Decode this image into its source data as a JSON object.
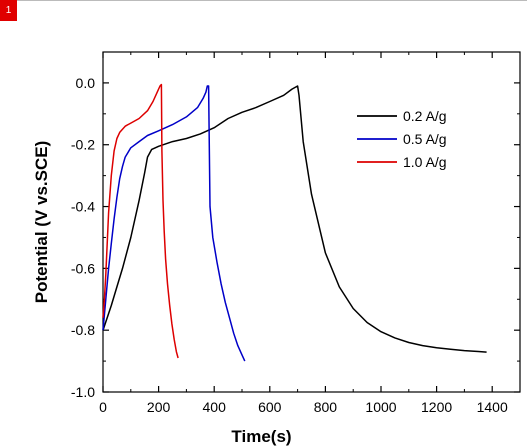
{
  "badge": {
    "label": "1",
    "color": "#e00000"
  },
  "chart_data": {
    "type": "line",
    "title": "",
    "xlabel": "Time(s)",
    "ylabel": "Potential (V vs.SCE)",
    "xlim": [
      0,
      1500
    ],
    "ylim": [
      -1.0,
      0.1
    ],
    "xticks": [
      0,
      200,
      400,
      600,
      800,
      1000,
      1200,
      1400
    ],
    "yticks": [
      0.0,
      -0.2,
      -0.4,
      -0.6,
      -0.8,
      -1.0
    ],
    "xtick_labels": [
      "0",
      "200",
      "400",
      "600",
      "800",
      "1000",
      "1200",
      "1400"
    ],
    "ytick_labels": [
      "0.0",
      "-0.2",
      "-0.4",
      "-0.6",
      "-0.8",
      "-1.0"
    ],
    "grid": false,
    "legend_position": "top-right",
    "series": [
      {
        "name": "0.2 A/g",
        "color": "#000000",
        "x": [
          0,
          15,
          30,
          50,
          70,
          100,
          130,
          150,
          160,
          175,
          200,
          250,
          300,
          350,
          400,
          450,
          500,
          550,
          600,
          650,
          680,
          700,
          705,
          720,
          750,
          800,
          850,
          900,
          950,
          1000,
          1050,
          1100,
          1150,
          1200,
          1250,
          1300,
          1350,
          1380
        ],
        "y": [
          -0.8,
          -0.76,
          -0.72,
          -0.66,
          -0.6,
          -0.5,
          -0.38,
          -0.29,
          -0.24,
          -0.215,
          -0.205,
          -0.19,
          -0.18,
          -0.165,
          -0.145,
          -0.115,
          -0.095,
          -0.08,
          -0.06,
          -0.04,
          -0.02,
          -0.01,
          -0.04,
          -0.19,
          -0.36,
          -0.55,
          -0.66,
          -0.73,
          -0.775,
          -0.805,
          -0.825,
          -0.84,
          -0.85,
          -0.857,
          -0.862,
          -0.866,
          -0.869,
          -0.871
        ]
      },
      {
        "name": "0.5 A/g",
        "color": "#0000c8",
        "x": [
          0,
          10,
          20,
          30,
          40,
          50,
          60,
          70,
          80,
          100,
          130,
          160,
          200,
          250,
          300,
          340,
          360,
          370,
          375,
          380,
          385,
          395,
          410,
          425,
          440,
          455,
          470,
          485,
          500,
          510
        ],
        "y": [
          -0.8,
          -0.7,
          -0.6,
          -0.52,
          -0.44,
          -0.37,
          -0.31,
          -0.27,
          -0.24,
          -0.21,
          -0.19,
          -0.17,
          -0.155,
          -0.135,
          -0.11,
          -0.08,
          -0.05,
          -0.03,
          -0.01,
          -0.01,
          -0.4,
          -0.5,
          -0.58,
          -0.65,
          -0.71,
          -0.76,
          -0.81,
          -0.85,
          -0.88,
          -0.9
        ]
      },
      {
        "name": "1.0 A/g",
        "color": "#dd0000",
        "x": [
          0,
          5,
          10,
          15,
          20,
          30,
          40,
          50,
          60,
          80,
          100,
          130,
          160,
          180,
          195,
          205,
          210,
          212,
          216,
          220,
          225,
          232,
          240,
          248,
          256,
          264,
          270
        ],
        "y": [
          -0.76,
          -0.7,
          -0.62,
          -0.52,
          -0.42,
          -0.3,
          -0.22,
          -0.18,
          -0.16,
          -0.14,
          -0.13,
          -0.115,
          -0.09,
          -0.06,
          -0.03,
          -0.01,
          -0.005,
          -0.22,
          -0.38,
          -0.48,
          -0.57,
          -0.65,
          -0.72,
          -0.78,
          -0.83,
          -0.87,
          -0.89
        ]
      }
    ]
  }
}
